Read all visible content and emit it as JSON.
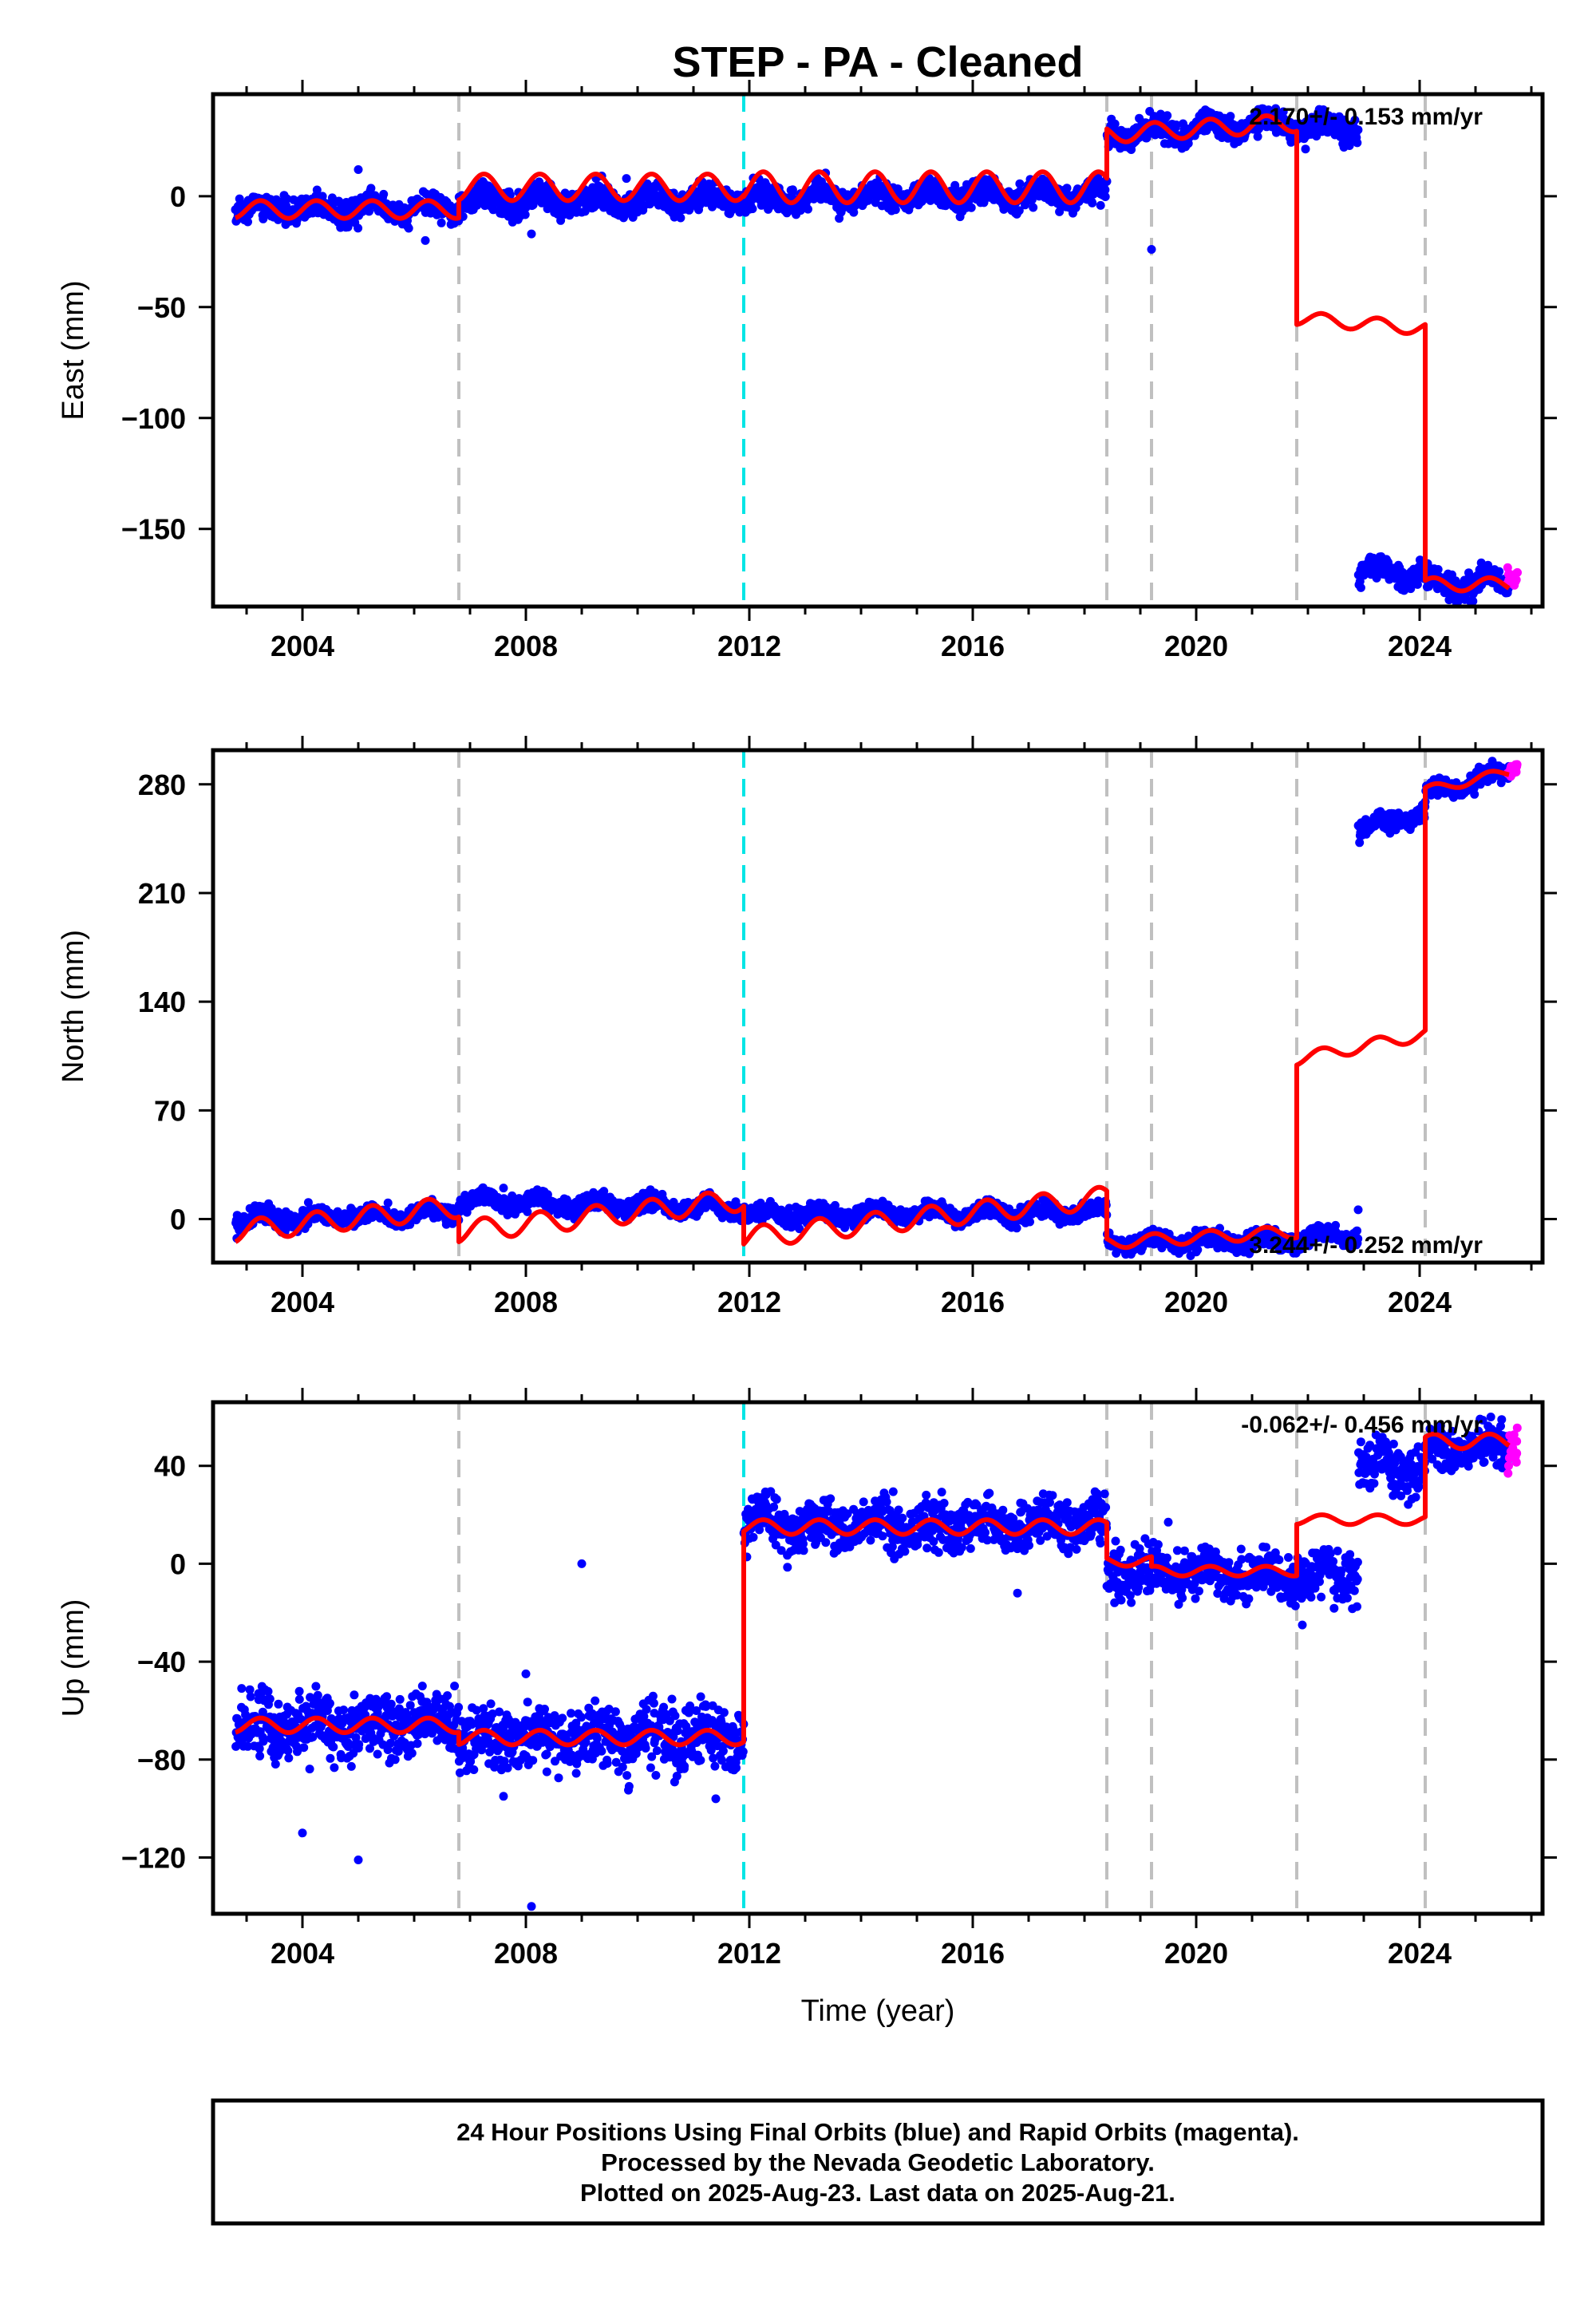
{
  "title": "STEP  - PA - Cleaned",
  "xlabel": "Time (year)",
  "footer": [
    "24 Hour Positions Using Final Orbits (blue) and Rapid Orbits (magenta).",
    "Processed by the Nevada Geodetic Laboratory.",
    "Plotted on 2025-Aug-23. Last data on 2025-Aug-21."
  ],
  "colors": {
    "final": "#0000ff",
    "rapid": "#ff00ff",
    "model": "#ff0000",
    "event_gray": "#c0c0c0",
    "event_cyan": "#00e5e5"
  },
  "chart_data": [
    {
      "type": "scatter",
      "name": "east",
      "ylabel": "East (mm)",
      "rate_label": "2.170+/- 0.153 mm/yr",
      "xlim": [
        2002.4,
        2026.2
      ],
      "ylim": [
        -185,
        46
      ],
      "xticks": [
        2004,
        2008,
        2012,
        2016,
        2020,
        2024
      ],
      "yticks": [
        -150,
        -100,
        -50,
        0
      ],
      "ytick_labels": [
        "−150",
        "−100",
        "−50",
        "0"
      ],
      "gray_events": [
        2006.8,
        2018.4,
        2019.2,
        2021.8,
        2024.1
      ],
      "cyan_events": [
        2011.9
      ],
      "segments": [
        [
          2002.8,
          2006.8,
          -6,
          0.2,
          4
        ],
        [
          2006.8,
          2011.9,
          -2,
          0.2,
          4
        ],
        [
          2011.9,
          2018.4,
          -1,
          0.3,
          4
        ],
        [
          2018.4,
          2021.8,
          28,
          1.5,
          4
        ],
        [
          2021.8,
          2022.9,
          30,
          1.5,
          4
        ],
        [
          2022.9,
          2024.1,
          -170,
          0.5,
          4
        ],
        [
          2024.1,
          2025.6,
          -175,
          0.5,
          4
        ]
      ],
      "model": [
        [
          2002.8,
          2006.8,
          -6,
          0,
          4
        ],
        [
          2006.8,
          2011.9,
          4,
          0,
          6
        ],
        [
          2011.9,
          2018.4,
          4,
          0,
          7
        ],
        [
          2018.4,
          2021.8,
          28,
          1.5,
          4
        ],
        [
          2021.8,
          2024.1,
          -55,
          -2,
          3
        ],
        [
          2024.1,
          2025.6,
          -175,
          0,
          3
        ]
      ],
      "outliers": [
        [
          2005.0,
          12
        ],
        [
          2006.2,
          -20
        ],
        [
          2008.1,
          -17
        ],
        [
          2019.2,
          -24
        ],
        [
          2009.8,
          8
        ]
      ],
      "rapid": [
        [
          2025.55,
          2025.75,
          -172,
          3
        ]
      ]
    },
    {
      "type": "scatter",
      "name": "north",
      "ylabel": "North (mm)",
      "rate_label": "3.244+/- 0.252 mm/yr",
      "xlim": [
        2002.4,
        2026.2
      ],
      "ylim": [
        -28,
        302
      ],
      "xticks": [
        2004,
        2008,
        2012,
        2016,
        2020,
        2024
      ],
      "yticks": [
        0,
        70,
        140,
        210,
        280
      ],
      "ytick_labels": [
        "0",
        "70",
        "140",
        "210",
        "280"
      ],
      "gray_events": [
        2006.8,
        2018.4,
        2019.2,
        2021.8,
        2024.1
      ],
      "cyan_events": [
        2011.9
      ],
      "segments": [
        [
          2002.8,
          2006.8,
          -1,
          1.3,
          4
        ],
        [
          2006.8,
          2011.9,
          12,
          -1.0,
          4
        ],
        [
          2011.9,
          2018.4,
          3,
          0.2,
          4
        ],
        [
          2018.4,
          2021.8,
          -15,
          0.5,
          4
        ],
        [
          2021.8,
          2022.9,
          -12,
          1.5,
          4
        ],
        [
          2022.9,
          2024.1,
          250,
          10,
          4
        ],
        [
          2024.1,
          2025.6,
          274,
          9,
          4
        ]
      ],
      "model": [
        [
          2002.8,
          2006.8,
          -8,
          4,
          7
        ],
        [
          2006.8,
          2011.9,
          -8,
          4,
          7
        ],
        [
          2011.9,
          2018.4,
          -12,
          4,
          7
        ],
        [
          2018.4,
          2021.8,
          -15,
          2,
          4
        ],
        [
          2021.8,
          2024.1,
          103,
          7,
          4
        ],
        [
          2024.1,
          2025.6,
          276,
          8,
          3
        ]
      ],
      "outliers": [
        [
          2022.9,
          6
        ],
        [
          2007.6,
          20
        ]
      ],
      "rapid": [
        [
          2025.55,
          2025.75,
          290,
          3
        ]
      ]
    },
    {
      "type": "scatter",
      "name": "up",
      "ylabel": "Up (mm)",
      "rate_label": "-0.062+/- 0.456 mm/yr",
      "xlim": [
        2002.4,
        2026.2
      ],
      "ylim": [
        -143,
        66
      ],
      "xticks": [
        2004,
        2008,
        2012,
        2016,
        2020,
        2024
      ],
      "yticks": [
        -120,
        -80,
        -40,
        0,
        40
      ],
      "ytick_labels": [
        "−120",
        "−80",
        "−40",
        "0",
        "40"
      ],
      "gray_events": [
        2006.8,
        2018.4,
        2019.2,
        2021.8,
        2024.1
      ],
      "cyan_events": [
        2011.9
      ],
      "segments": [
        [
          2002.8,
          2006.8,
          -68,
          1.0,
          9
        ],
        [
          2006.8,
          2011.9,
          -71,
          0,
          9
        ],
        [
          2011.9,
          2018.4,
          16,
          0,
          7
        ],
        [
          2018.4,
          2021.8,
          -3,
          -0.5,
          7
        ],
        [
          2021.8,
          2022.9,
          -5,
          0,
          7
        ],
        [
          2022.9,
          2024.1,
          40,
          0,
          7
        ],
        [
          2024.1,
          2025.6,
          47,
          0,
          6
        ]
      ],
      "model": [
        [
          2002.8,
          2006.8,
          -66,
          0,
          3
        ],
        [
          2006.8,
          2011.9,
          -71,
          0,
          3
        ],
        [
          2011.9,
          2018.4,
          15,
          0,
          3
        ],
        [
          2018.4,
          2019.2,
          1,
          0,
          2
        ],
        [
          2019.2,
          2021.8,
          -3,
          0,
          2
        ],
        [
          2021.8,
          2024.1,
          18,
          0,
          2
        ],
        [
          2024.1,
          2025.6,
          50,
          0,
          3
        ]
      ],
      "outliers": [
        [
          2004.0,
          -110
        ],
        [
          2005.0,
          -121
        ],
        [
          2008.1,
          -140
        ],
        [
          2009.0,
          0
        ],
        [
          2008.0,
          -45
        ],
        [
          2007.6,
          -95
        ],
        [
          2011.4,
          -96
        ],
        [
          2019.5,
          17
        ],
        [
          2021.9,
          -25
        ],
        [
          2012.2,
          27
        ],
        [
          2016.8,
          -12
        ]
      ],
      "rapid": [
        [
          2025.55,
          2025.75,
          48,
          9
        ]
      ]
    }
  ]
}
